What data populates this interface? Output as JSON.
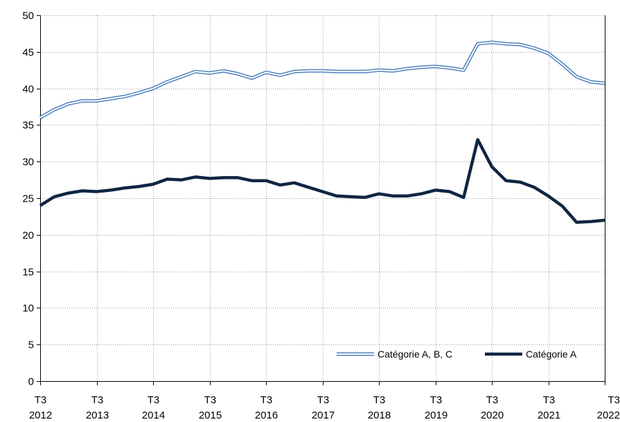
{
  "chart_data": {
    "type": "line",
    "title": "",
    "xlabel": "",
    "ylabel": "",
    "ylim": [
      0,
      50
    ],
    "y_ticks": [
      0,
      5,
      10,
      15,
      20,
      25,
      30,
      35,
      40,
      45,
      50
    ],
    "x_ticks": [
      {
        "line1": "T3",
        "line2": "2012",
        "index": 0
      },
      {
        "line1": "T3",
        "line2": "2013",
        "index": 4
      },
      {
        "line1": "T3",
        "line2": "2014",
        "index": 8
      },
      {
        "line1": "T3",
        "line2": "2015",
        "index": 12
      },
      {
        "line1": "T3",
        "line2": "2016",
        "index": 16
      },
      {
        "line1": "T3",
        "line2": "2017",
        "index": 20
      },
      {
        "line1": "T3",
        "line2": "2018",
        "index": 24
      },
      {
        "line1": "T3",
        "line2": "2019",
        "index": 28
      },
      {
        "line1": "T3",
        "line2": "2020",
        "index": 32
      },
      {
        "line1": "T3",
        "line2": "2021",
        "index": 36
      },
      {
        "line1": "T3",
        "line2": "2022",
        "index": 40
      }
    ],
    "grid": true,
    "legend_position": "bottom-right",
    "series": [
      {
        "name": "Catégorie A, B, C",
        "color": "#4f81bd",
        "style": "double-line",
        "values": [
          36.0,
          37.1,
          37.9,
          38.3,
          38.3,
          38.6,
          38.9,
          39.4,
          40.0,
          40.9,
          41.6,
          42.3,
          42.1,
          42.4,
          42.0,
          41.4,
          42.2,
          41.8,
          42.3,
          42.4,
          42.4,
          42.3,
          42.3,
          42.3,
          42.5,
          42.4,
          42.7,
          42.9,
          43.0,
          42.8,
          42.5,
          46.1,
          46.3,
          46.1,
          46.0,
          45.5,
          44.8,
          43.3,
          41.6,
          40.9,
          40.7
        ]
      },
      {
        "name": "Catégorie A",
        "color": "#0f2642",
        "style": "thick-line",
        "values": [
          24.0,
          25.2,
          25.7,
          26.0,
          25.9,
          26.1,
          26.4,
          26.6,
          26.9,
          27.6,
          27.5,
          27.9,
          27.7,
          27.8,
          27.8,
          27.4,
          27.4,
          26.8,
          27.1,
          26.5,
          25.9,
          25.3,
          25.2,
          25.1,
          25.6,
          25.3,
          25.3,
          25.6,
          26.1,
          25.9,
          25.1,
          33.0,
          29.3,
          27.4,
          27.2,
          26.5,
          25.3,
          23.9,
          21.7,
          21.8,
          22.0
        ]
      }
    ]
  }
}
